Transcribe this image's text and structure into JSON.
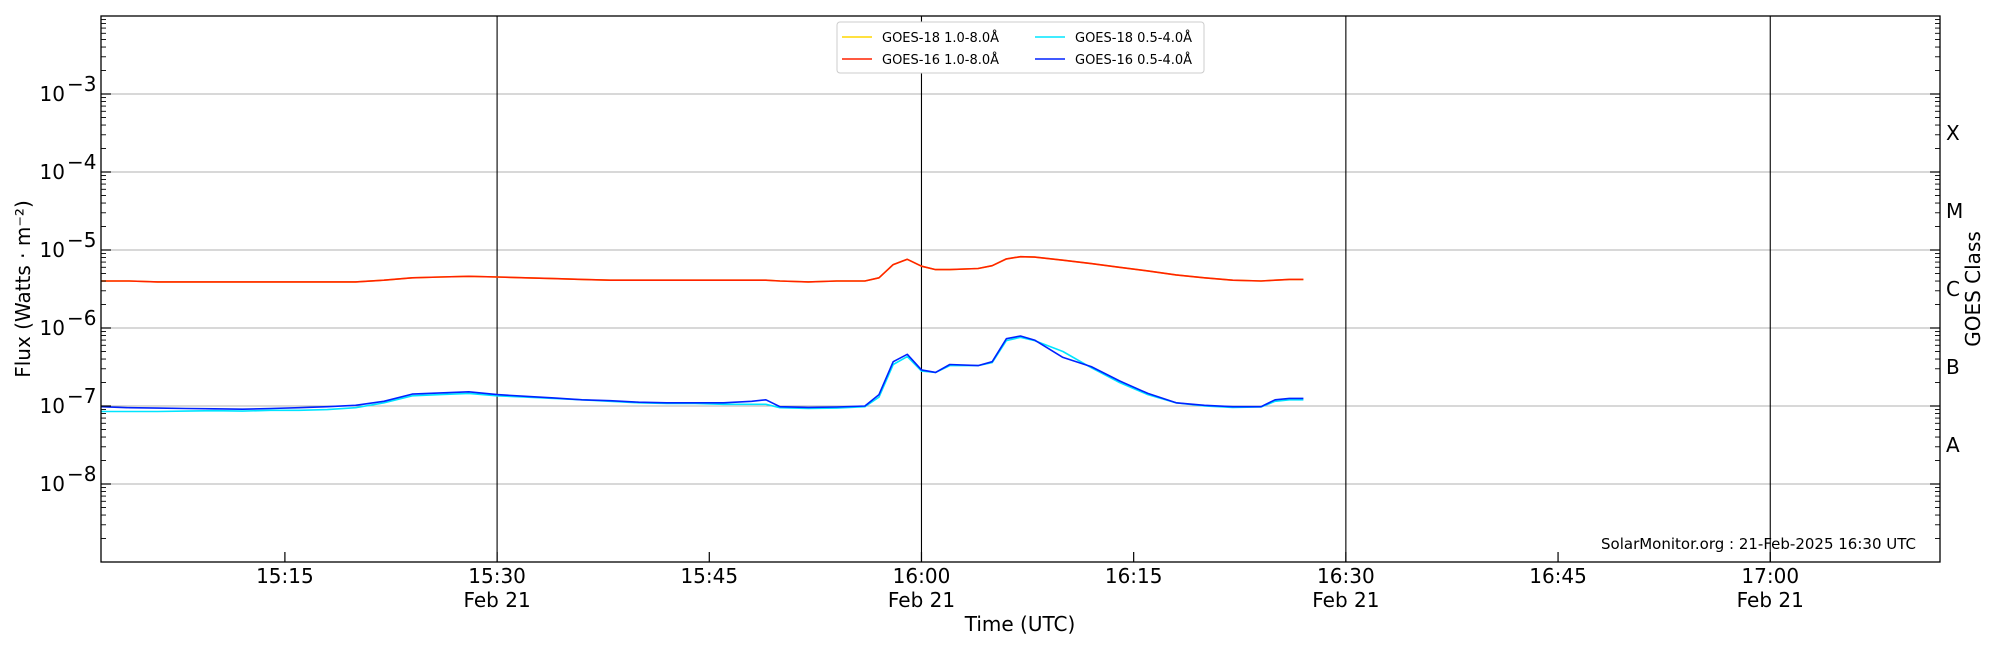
{
  "chart_data": {
    "type": "line",
    "xlabel": "Time (UTC)",
    "ylabel": "Flux (Watts · m⁻²)",
    "ylabel_right": "GOES Class",
    "y_scale": "log",
    "ylim": [
      1e-09,
      0.01
    ],
    "xlim": [
      "2025-02-21 15:02",
      "2025-02-21 17:12"
    ],
    "grid": "horizontal at decades",
    "legend_position": "top-center",
    "credit": "SolarMonitor.org : 21-Feb-2025 16:30 UTC",
    "x_ticks": [
      {
        "time": "15:15",
        "minute": 915,
        "date": ""
      },
      {
        "time": "15:30",
        "minute": 930,
        "date": "Feb 21"
      },
      {
        "time": "15:45",
        "minute": 945,
        "date": ""
      },
      {
        "time": "16:00",
        "minute": 960,
        "date": "Feb 21"
      },
      {
        "time": "16:15",
        "minute": 975,
        "date": ""
      },
      {
        "time": "16:30",
        "minute": 990,
        "date": "Feb 21"
      },
      {
        "time": "16:45",
        "minute": 1005,
        "date": ""
      },
      {
        "time": "17:00",
        "minute": 1020,
        "date": "Feb 21"
      }
    ],
    "y_ticks": [
      {
        "value": 1e-08,
        "label": "10",
        "exp": "−8"
      },
      {
        "value": 1e-07,
        "label": "10",
        "exp": "−7"
      },
      {
        "value": 1e-06,
        "label": "10",
        "exp": "−6"
      },
      {
        "value": 1e-05,
        "label": "10",
        "exp": "−5"
      },
      {
        "value": 0.0001,
        "label": "10",
        "exp": "−4"
      },
      {
        "value": 0.001,
        "label": "10",
        "exp": "−3"
      }
    ],
    "goes_classes": [
      {
        "label": "A",
        "value": 3.16e-08
      },
      {
        "label": "B",
        "value": 3.16e-07
      },
      {
        "label": "C",
        "value": 3.16e-06
      },
      {
        "label": "M",
        "value": 3.16e-05
      },
      {
        "label": "X",
        "value": 0.000316
      }
    ],
    "day_lines": [
      "15:30",
      "16:00",
      "16:30",
      "17:00"
    ],
    "series": [
      {
        "name": "GOES-18 1.0-8.0Å",
        "color": "#FFD700",
        "x": [
          "15:02",
          "15:04",
          "15:06",
          "15:08",
          "15:10",
          "15:12",
          "15:14",
          "15:16",
          "15:18",
          "15:20",
          "15:22",
          "15:24",
          "15:26",
          "15:28",
          "15:30",
          "15:32",
          "15:34",
          "15:36",
          "15:38",
          "15:40",
          "15:42",
          "15:44",
          "15:46",
          "15:48",
          "15:49",
          "15:50",
          "15:52",
          "15:54",
          "15:56",
          "15:57",
          "15:58",
          "15:59",
          "16:00",
          "16:01",
          "16:02",
          "16:04",
          "16:05",
          "16:06",
          "16:07",
          "16:08",
          "16:10",
          "16:12",
          "16:14",
          "16:16",
          "16:18",
          "16:20",
          "16:22",
          "16:24",
          "16:25",
          "16:26",
          "16:27"
        ],
        "y": [
          4e-06,
          4e-06,
          3.9e-06,
          3.9e-06,
          3.9e-06,
          3.9e-06,
          3.9e-06,
          3.9e-06,
          3.9e-06,
          3.9e-06,
          4.1e-06,
          4.4e-06,
          4.5e-06,
          4.6e-06,
          4.5e-06,
          4.4e-06,
          4.3e-06,
          4.2e-06,
          4.1e-06,
          4.1e-06,
          4.1e-06,
          4.1e-06,
          4.1e-06,
          4.1e-06,
          4.1e-06,
          4e-06,
          3.9e-06,
          4e-06,
          4e-06,
          4.4e-06,
          6.5e-06,
          7.6e-06,
          6.2e-06,
          5.6e-06,
          5.6e-06,
          5.8e-06,
          6.3e-06,
          7.7e-06,
          8.2e-06,
          8.1e-06,
          7.4e-06,
          6.7e-06,
          6e-06,
          5.4e-06,
          4.8e-06,
          4.4e-06,
          4.1e-06,
          4e-06,
          4.1e-06,
          4.2e-06,
          4.2e-06
        ]
      },
      {
        "name": "GOES-16 1.0-8.0Å",
        "color": "#FF2200",
        "x": [
          "15:02",
          "15:04",
          "15:06",
          "15:08",
          "15:10",
          "15:12",
          "15:14",
          "15:16",
          "15:18",
          "15:20",
          "15:22",
          "15:24",
          "15:26",
          "15:28",
          "15:30",
          "15:32",
          "15:34",
          "15:36",
          "15:38",
          "15:40",
          "15:42",
          "15:44",
          "15:46",
          "15:48",
          "15:49",
          "15:50",
          "15:52",
          "15:54",
          "15:56",
          "15:57",
          "15:58",
          "15:59",
          "16:00",
          "16:01",
          "16:02",
          "16:04",
          "16:05",
          "16:06",
          "16:07",
          "16:08",
          "16:10",
          "16:12",
          "16:14",
          "16:16",
          "16:18",
          "16:20",
          "16:22",
          "16:24",
          "16:25",
          "16:26",
          "16:27"
        ],
        "y": [
          4e-06,
          4e-06,
          3.9e-06,
          3.9e-06,
          3.9e-06,
          3.9e-06,
          3.9e-06,
          3.9e-06,
          3.9e-06,
          3.9e-06,
          4.1e-06,
          4.4e-06,
          4.5e-06,
          4.6e-06,
          4.5e-06,
          4.4e-06,
          4.3e-06,
          4.2e-06,
          4.1e-06,
          4.1e-06,
          4.1e-06,
          4.1e-06,
          4.1e-06,
          4.1e-06,
          4.1e-06,
          4e-06,
          3.9e-06,
          4e-06,
          4e-06,
          4.4e-06,
          6.5e-06,
          7.6e-06,
          6.2e-06,
          5.6e-06,
          5.6e-06,
          5.8e-06,
          6.3e-06,
          7.7e-06,
          8.2e-06,
          8.1e-06,
          7.4e-06,
          6.7e-06,
          6e-06,
          5.4e-06,
          4.8e-06,
          4.4e-06,
          4.1e-06,
          4e-06,
          4.1e-06,
          4.2e-06,
          4.2e-06
        ]
      },
      {
        "name": "GOES-18 0.5-4.0Å",
        "color": "#00E5FF",
        "x": [
          "15:02",
          "15:04",
          "15:06",
          "15:08",
          "15:10",
          "15:12",
          "15:14",
          "15:16",
          "15:18",
          "15:20",
          "15:22",
          "15:24",
          "15:26",
          "15:28",
          "15:30",
          "15:32",
          "15:34",
          "15:36",
          "15:38",
          "15:40",
          "15:42",
          "15:44",
          "15:46",
          "15:48",
          "15:49",
          "15:50",
          "15:52",
          "15:54",
          "15:56",
          "15:57",
          "15:58",
          "15:59",
          "16:00",
          "16:01",
          "16:02",
          "16:04",
          "16:05",
          "16:06",
          "16:07",
          "16:08",
          "16:10",
          "16:12",
          "16:14",
          "16:16",
          "16:18",
          "16:20",
          "16:22",
          "16:24",
          "16:25",
          "16:26",
          "16:27"
        ],
        "y": [
          8.5e-08,
          8.5e-08,
          8.5e-08,
          8.6e-08,
          8.7e-08,
          8.6e-08,
          8.8e-08,
          8.8e-08,
          9e-08,
          9.5e-08,
          1.1e-07,
          1.35e-07,
          1.4e-07,
          1.45e-07,
          1.35e-07,
          1.3e-07,
          1.25e-07,
          1.2e-07,
          1.15e-07,
          1.1e-07,
          1.08e-07,
          1.08e-07,
          1.05e-07,
          1.05e-07,
          1.05e-07,
          9.5e-08,
          9.3e-08,
          9.4e-08,
          9.8e-08,
          1.3e-07,
          3.4e-07,
          4.3e-07,
          2.8e-07,
          2.7e-07,
          3.3e-07,
          3.3e-07,
          3.6e-07,
          6.9e-07,
          7.6e-07,
          6.9e-07,
          5e-07,
          3.1e-07,
          2e-07,
          1.4e-07,
          1.1e-07,
          1e-07,
          9.6e-08,
          9.7e-08,
          1.15e-07,
          1.2e-07,
          1.2e-07
        ]
      },
      {
        "name": "GOES-16 0.5-4.0Å",
        "color": "#0022FF",
        "x": [
          "15:02",
          "15:04",
          "15:06",
          "15:08",
          "15:10",
          "15:12",
          "15:14",
          "15:16",
          "15:18",
          "15:20",
          "15:22",
          "15:24",
          "15:26",
          "15:28",
          "15:30",
          "15:32",
          "15:34",
          "15:36",
          "15:38",
          "15:40",
          "15:42",
          "15:44",
          "15:46",
          "15:48",
          "15:49",
          "15:50",
          "15:52",
          "15:54",
          "15:56",
          "15:57",
          "15:58",
          "15:59",
          "16:00",
          "16:01",
          "16:02",
          "16:04",
          "16:05",
          "16:06",
          "16:07",
          "16:08",
          "16:10",
          "16:12",
          "16:14",
          "16:16",
          "16:18",
          "16:20",
          "16:22",
          "16:24",
          "16:25",
          "16:26",
          "16:27"
        ],
        "y": [
          9.8e-08,
          9.5e-08,
          9.4e-08,
          9.3e-08,
          9.2e-08,
          9.1e-08,
          9.3e-08,
          9.5e-08,
          9.8e-08,
          1.02e-07,
          1.15e-07,
          1.42e-07,
          1.47e-07,
          1.52e-07,
          1.4e-07,
          1.33e-07,
          1.27e-07,
          1.2e-07,
          1.17e-07,
          1.12e-07,
          1.1e-07,
          1.1e-07,
          1.1e-07,
          1.15e-07,
          1.2e-07,
          9.8e-08,
          9.6e-08,
          9.7e-08,
          1e-07,
          1.4e-07,
          3.7e-07,
          4.6e-07,
          2.9e-07,
          2.7e-07,
          3.4e-07,
          3.3e-07,
          3.7e-07,
          7.3e-07,
          7.9e-07,
          7e-07,
          4.2e-07,
          3.2e-07,
          2.1e-07,
          1.45e-07,
          1.1e-07,
          1.02e-07,
          9.8e-08,
          9.8e-08,
          1.2e-07,
          1.25e-07,
          1.25e-07
        ]
      }
    ]
  }
}
